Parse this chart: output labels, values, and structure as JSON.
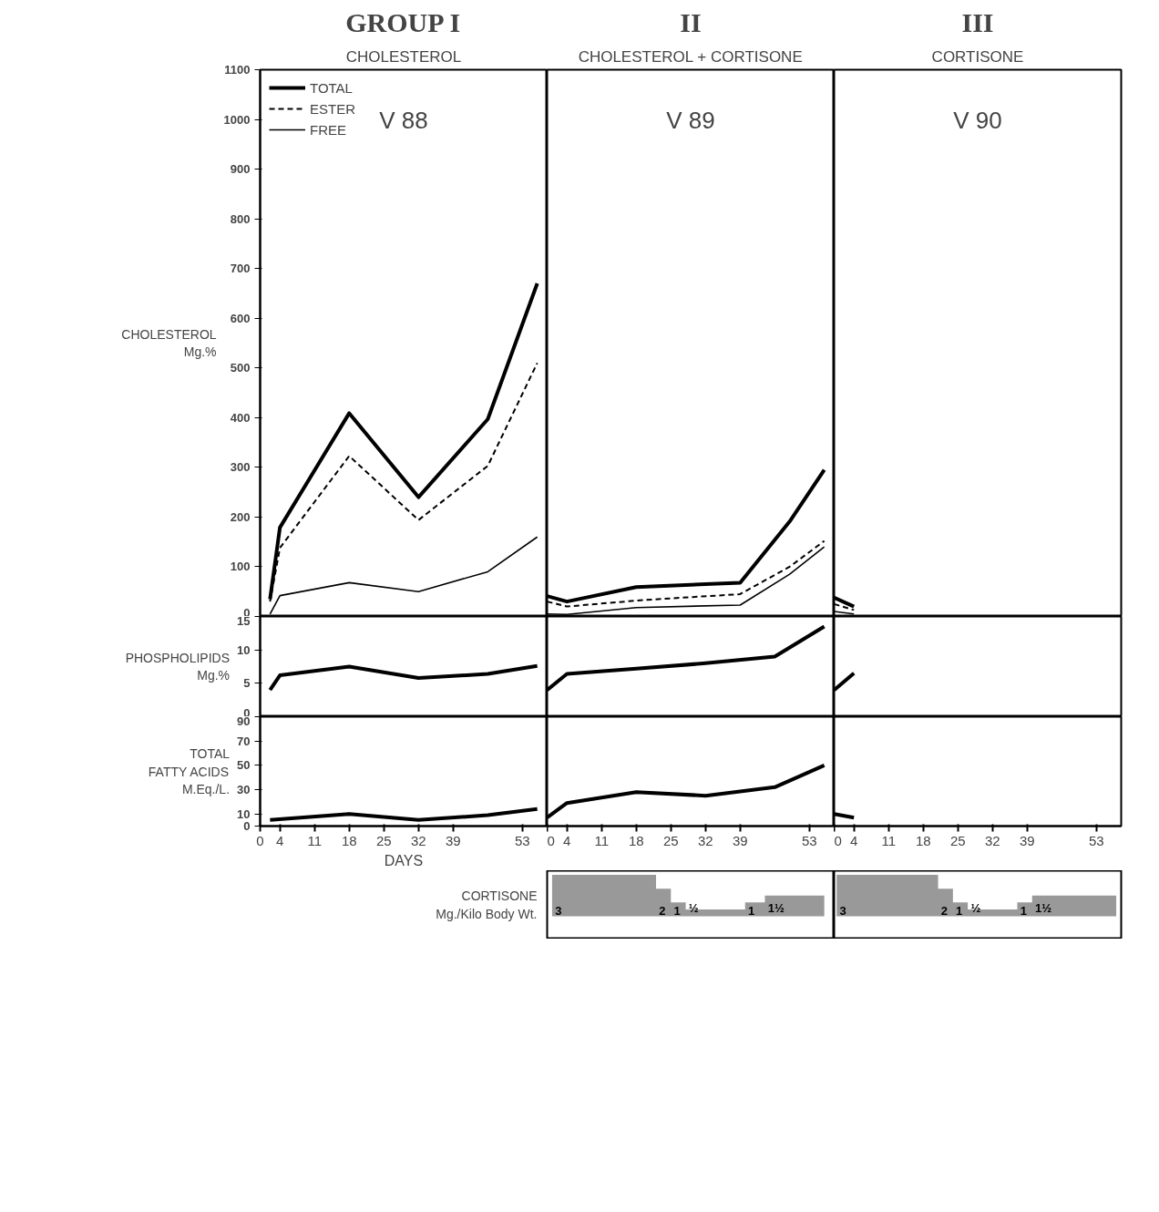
{
  "chart_data": [
    {
      "type": "line",
      "title": "GROUP I",
      "subtitle": "CHOLESTEROL",
      "ylabel": "CHOLESTEROL\nMg.%",
      "annotations": [
        "V 88"
      ],
      "x": [
        2,
        4,
        18,
        32,
        46,
        56
      ],
      "xlim": [
        0,
        58
      ],
      "xticks": [
        0,
        4,
        11,
        18,
        25,
        32,
        39,
        53
      ],
      "ylim": [
        0,
        1100
      ],
      "yticks": [
        0,
        100,
        200,
        300,
        400,
        500,
        600,
        700,
        800,
        900,
        1000,
        1100
      ],
      "tick_labels": "y",
      "legend": "top left",
      "grid": false,
      "series": [
        {
          "name": "TOTAL",
          "color": "#000000",
          "line_style": "solid",
          "values": [
            35,
            179,
            409,
            240,
            397,
            670
          ]
        },
        {
          "name": "ESTER",
          "color": "#000000",
          "line_style": "dashed",
          "values": [
            30,
            138,
            323,
            194,
            303,
            510
          ]
        },
        {
          "name": "FREE",
          "color": "#000000",
          "line_style": "solid",
          "values": [
            5,
            42,
            68,
            50,
            90,
            160
          ]
        }
      ]
    },
    {
      "type": "line",
      "title": "II",
      "subtitle": "CHOLESTEROL + CORTISONE",
      "annotations": [
        "V 89"
      ],
      "x": [
        0,
        4,
        18,
        39,
        49,
        56
      ],
      "xlim": [
        0,
        58
      ],
      "xticks": [
        0,
        4,
        11,
        18,
        25,
        32,
        39,
        53
      ],
      "ylim": [
        0,
        1100
      ],
      "yticks": [
        0,
        100,
        200,
        300,
        400,
        500,
        600,
        700,
        800,
        900,
        1000,
        1100
      ],
      "tick_labels": false,
      "grid": false,
      "series": [
        {
          "color": "#000000",
          "line_style": "solid",
          "values": [
            41,
            30,
            59,
            68,
            191,
            295
          ]
        },
        {
          "color": "#000000",
          "line_style": "dashed",
          "values": [
            30,
            20,
            32,
            45,
            100,
            152
          ]
        },
        {
          "color": "#000000",
          "line_style": "solid",
          "values": [
            5,
            4,
            18,
            23,
            85,
            140
          ]
        }
      ]
    },
    {
      "type": "line",
      "title": "III",
      "subtitle": "CORTISONE",
      "annotations": [
        "V 90"
      ],
      "x": [
        0,
        4
      ],
      "xlim": [
        0,
        58
      ],
      "xticks": [
        0,
        4,
        11,
        18,
        25,
        32,
        39,
        53
      ],
      "ylim": [
        0,
        1100
      ],
      "yticks": [
        0,
        100,
        200,
        300,
        400,
        500,
        600,
        700,
        800,
        900,
        1000,
        1100
      ],
      "tick_labels": false,
      "grid": false,
      "series": [
        {
          "color": "#000000",
          "line_style": "solid",
          "values": [
            38,
            20
          ]
        },
        {
          "color": "#000000",
          "line_style": "dashed",
          "values": [
            25,
            13
          ]
        },
        {
          "color": "#000000",
          "line_style": "solid",
          "values": [
            10,
            5
          ]
        }
      ]
    },
    {
      "type": "line",
      "ylabel": "PHOSPHOLIPIDS\nMg.%",
      "x": [
        2,
        4,
        18,
        32,
        46,
        56
      ],
      "xlim": [
        0,
        58
      ],
      "xticks": [
        0,
        4,
        11,
        18,
        25,
        32,
        39,
        53
      ],
      "ylim": [
        0,
        15
      ],
      "yticks": [
        0,
        5,
        10,
        15
      ],
      "tick_labels": "y",
      "grid": false,
      "series": [
        {
          "color": "#000000",
          "line_style": "solid",
          "values": [
            4,
            6.2,
            7.5,
            5.8,
            6.4,
            7.6
          ]
        }
      ]
    },
    {
      "type": "line",
      "x": [
        0,
        4,
        18,
        32,
        46,
        56
      ],
      "xlim": [
        0,
        58
      ],
      "xticks": [
        0,
        4,
        11,
        18,
        25,
        32,
        39,
        53
      ],
      "ylim": [
        0,
        15
      ],
      "yticks": [
        0,
        5,
        10,
        15
      ],
      "tick_labels": false,
      "grid": false,
      "series": [
        {
          "color": "#000000",
          "line_style": "solid",
          "values": [
            4,
            6.4,
            7.2,
            8,
            9,
            13.5
          ]
        }
      ]
    },
    {
      "type": "line",
      "x": [
        0,
        4
      ],
      "xlim": [
        0,
        58
      ],
      "xticks": [
        0,
        4,
        11,
        18,
        25,
        32,
        39,
        53
      ],
      "ylim": [
        0,
        15
      ],
      "yticks": [
        0,
        5,
        10,
        15
      ],
      "tick_labels": false,
      "grid": false,
      "series": [
        {
          "color": "#000000",
          "line_style": "solid",
          "values": [
            4,
            6.5
          ]
        }
      ]
    },
    {
      "type": "line",
      "ylabel": "TOTAL\nFATTY ACIDS\nM.Eq./L.",
      "xlabel": "DAYS",
      "x": [
        2,
        18,
        32,
        46,
        56
      ],
      "xlim": [
        0,
        58
      ],
      "xticks": [
        0,
        4,
        11,
        18,
        25,
        32,
        39,
        53
      ],
      "ylim": [
        0,
        90
      ],
      "yticks": [
        0,
        10,
        30,
        50,
        70,
        90
      ],
      "grid": false,
      "series": [
        {
          "color": "#000000",
          "line_style": "solid",
          "values": [
            5,
            10,
            5,
            9,
            14
          ]
        }
      ]
    },
    {
      "type": "line",
      "x": [
        0,
        4,
        18,
        32,
        46,
        56
      ],
      "xlim": [
        0,
        58
      ],
      "xticks": [
        0,
        4,
        11,
        18,
        25,
        32,
        39,
        53
      ],
      "ylim": [
        0,
        90
      ],
      "yticks": [
        0,
        10,
        30,
        50,
        70,
        90
      ],
      "tick_labels": "x",
      "grid": false,
      "series": [
        {
          "color": "#000000",
          "line_style": "solid",
          "values": [
            7,
            19,
            28,
            25,
            32,
            50
          ]
        }
      ]
    },
    {
      "type": "line",
      "x": [
        0,
        4
      ],
      "xlim": [
        0,
        58
      ],
      "xticks": [
        0,
        4,
        11,
        18,
        25,
        32,
        39,
        53
      ],
      "ylim": [
        0,
        90
      ],
      "yticks": [
        0,
        10,
        30,
        50,
        70,
        90
      ],
      "tick_labels": "x",
      "grid": false,
      "series": [
        {
          "color": "#000000",
          "line_style": "solid",
          "values": [
            10,
            7
          ]
        }
      ]
    },
    {
      "type": "area",
      "ylabel": "CORTISONE\nMg./Kilo Body Wt.",
      "x": [
        1,
        22,
        25,
        28,
        40,
        44,
        56
      ],
      "xlim": [
        0,
        58
      ],
      "tick_labels": false,
      "grid": false,
      "series": [
        {
          "color": "#999999",
          "values": [
            3,
            2,
            1,
            0.5,
            1,
            1.5,
            1.5
          ],
          "value_labels": [
            "3",
            "2",
            "1",
            "½",
            "1",
            "1½",
            null
          ]
        }
      ]
    },
    {
      "type": "area",
      "x": [
        0.5,
        21,
        24,
        27,
        37,
        40,
        57
      ],
      "xlim": [
        0,
        58
      ],
      "tick_labels": false,
      "grid": false,
      "series": [
        {
          "color": "#999999",
          "values": [
            3,
            2,
            1,
            0.5,
            1,
            1.5,
            1.5
          ],
          "value_labels": [
            "3",
            "2",
            "1",
            "½",
            "1",
            "1½",
            null
          ]
        }
      ]
    }
  ]
}
